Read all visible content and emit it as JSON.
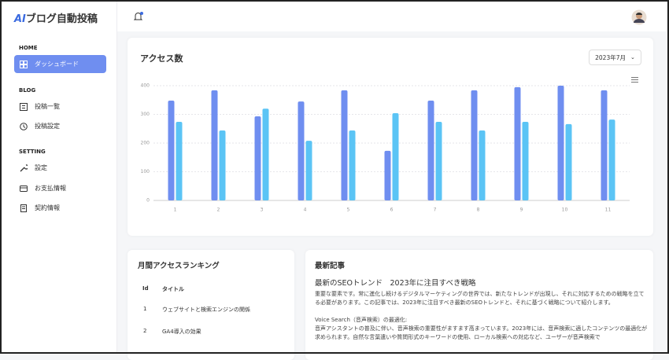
{
  "logo": {
    "mark": "AI",
    "text": "ブログ自動投稿"
  },
  "sidebar": {
    "sections": [
      {
        "title": "HOME",
        "items": [
          "ダッシュボード"
        ]
      },
      {
        "title": "BLOG",
        "items": [
          "投稿一覧",
          "投稿設定"
        ]
      },
      {
        "title": "SETTING",
        "items": [
          "設定",
          "お支払情報",
          "契約情報"
        ]
      }
    ]
  },
  "access_card": {
    "period": "2023年7月"
  },
  "chart_data": {
    "type": "bar",
    "title": "アクセス数",
    "categories": [
      "1",
      "2",
      "3",
      "4",
      "5",
      "6",
      "7",
      "8",
      "9",
      "10",
      "11"
    ],
    "series": [
      {
        "color": "#6f8ef0",
        "values": [
          348,
          384,
          293,
          345,
          384,
          173,
          348,
          384,
          395,
          400,
          384
        ]
      },
      {
        "color": "#5bc4f5",
        "values": [
          274,
          244,
          320,
          208,
          244,
          304,
          274,
          244,
          274,
          266,
          282
        ]
      }
    ],
    "ylim": [
      0,
      400
    ],
    "yticks": [
      0,
      100,
      200,
      300,
      400
    ],
    "grid": true
  },
  "ranking": {
    "title": "月間アクセスランキング",
    "header": [
      "Id",
      "タイトル"
    ],
    "rows": [
      [
        1,
        "ウェブサイトと検索エンジンの関係"
      ],
      [
        2,
        "GA4導入の効果"
      ]
    ]
  },
  "latest": {
    "title": "最新記事",
    "article_title": "最新のSEOトレンド　2023年に注目すべき戦略",
    "paragraphs": [
      "重要な要素です。常に進化し続けるデジタルマーケティングの世界では、新たなトレンドが出現し、それに対応するための戦略を立てる必要があります。この記事では、2023年に注目すべき最新のSEOトレンドと、それに基づく戦略について紹介します。",
      "Voice Search（音声検索）の最適化:",
      "音声アシスタントの普及に伴い、音声検索の重要性がますます高まっています。2023年には、音声検索に適したコンテンツの最適化が求められます。自然な言葉遣いや質問形式のキーワードの使用、ローカル検索への対応など、ユーザーが音声検索で"
    ]
  }
}
